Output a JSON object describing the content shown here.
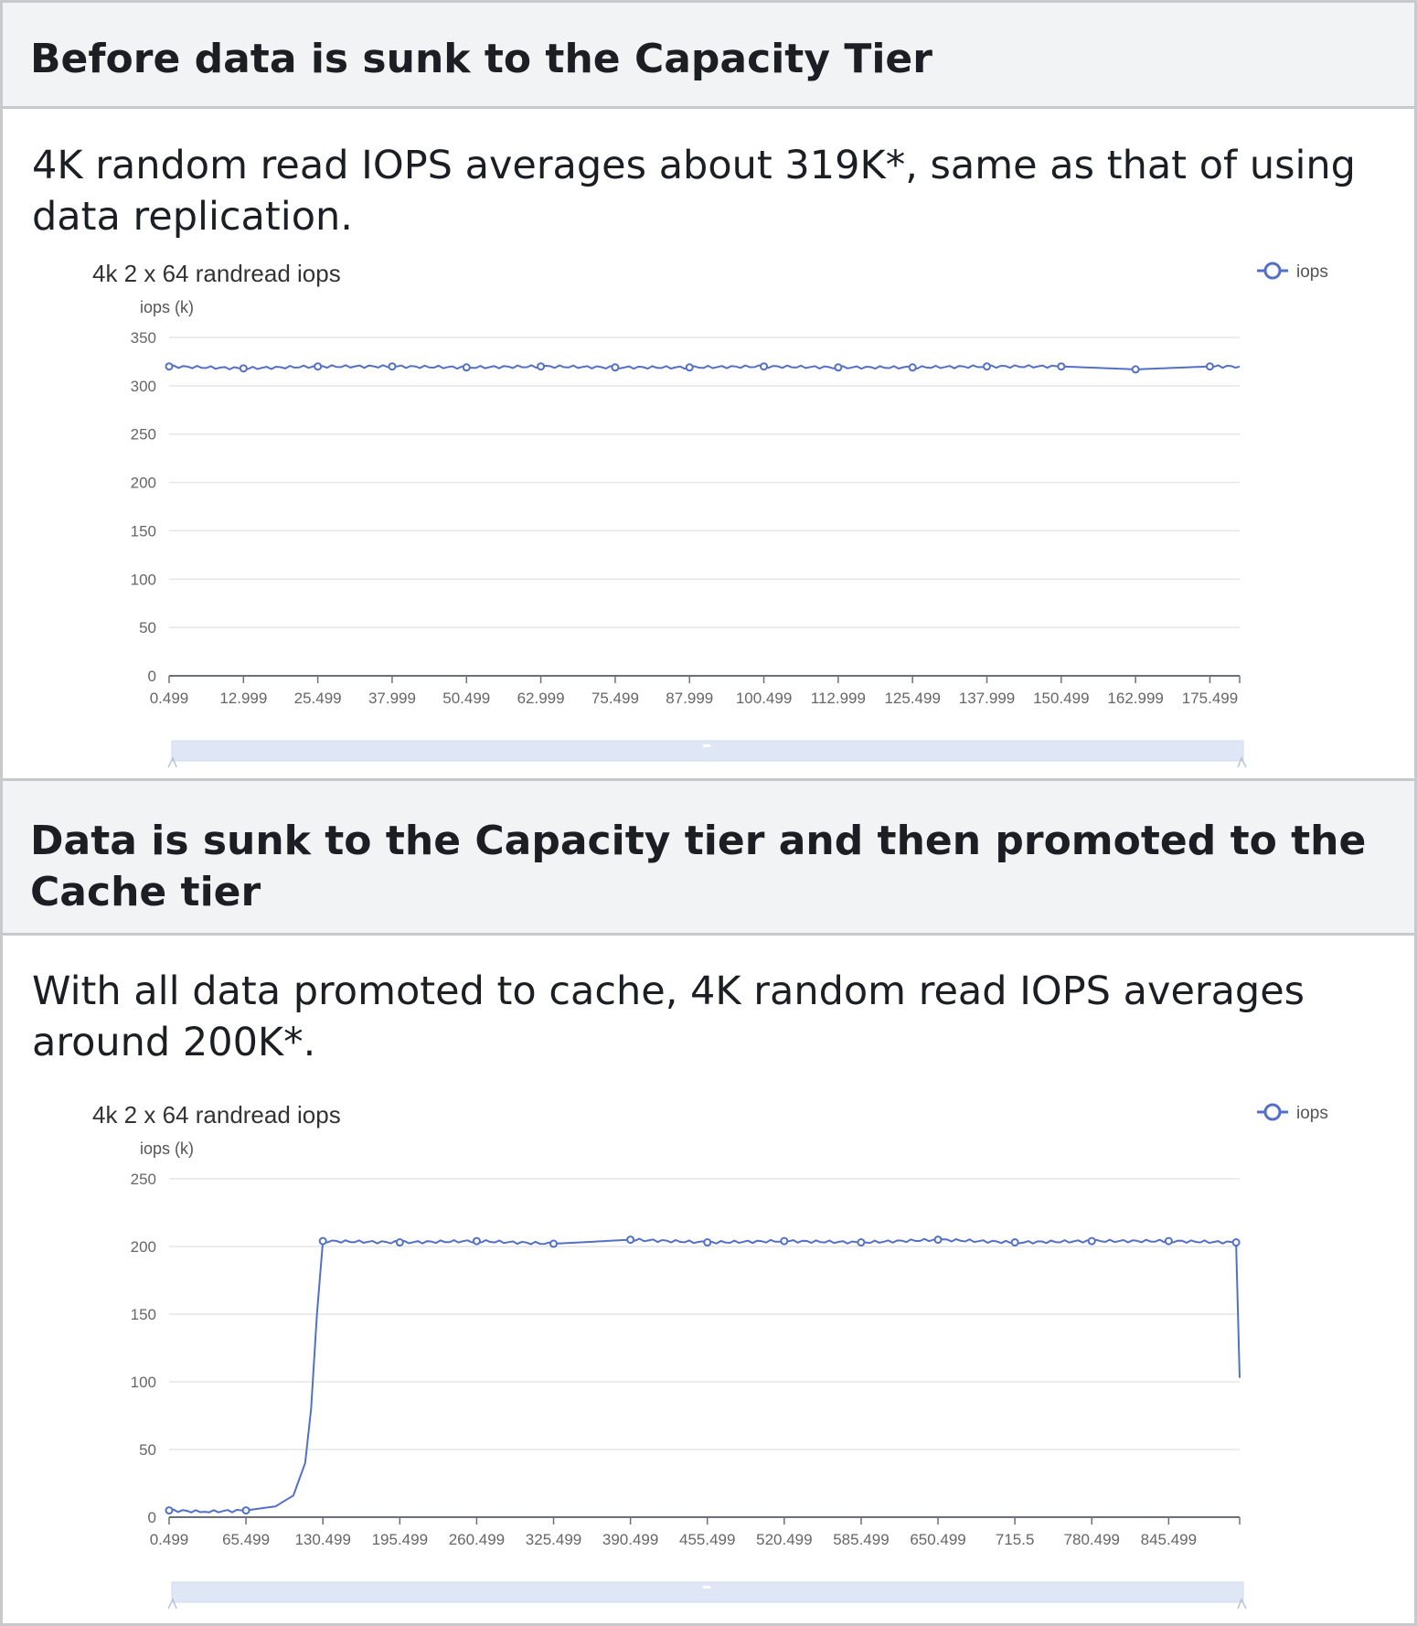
{
  "sections": [
    {
      "header": "Before data is sunk to the Capacity Tier",
      "text": "4K random read IOPS averages about 319K*, same as that of using data replication."
    },
    {
      "header": "Data is sunk to the Capacity tier and then promoted to the Cache tier",
      "text": "With all data promoted to cache, 4K random read IOPS averages around 200K*."
    }
  ],
  "colors": {
    "series": "#5470c6",
    "grid": "#e6e6e6",
    "axis": "#6e7079",
    "slider": "#dfe6f5"
  },
  "chart_data": [
    {
      "type": "line",
      "title": "4k 2 x 64 randread iops",
      "ylabel": "iops (k)",
      "ylim": [
        0,
        350
      ],
      "yticks": [
        0,
        50,
        100,
        150,
        200,
        250,
        300,
        350
      ],
      "xlim": [
        0.499,
        180.499
      ],
      "xticks": [
        "0.499",
        "12.999",
        "25.499",
        "37.999",
        "50.499",
        "62.999",
        "75.499",
        "87.999",
        "100.499",
        "112.999",
        "125.499",
        "137.999",
        "150.499",
        "162.999",
        "175.499"
      ],
      "legend": "top-right",
      "grid": true,
      "series": [
        {
          "name": "iops",
          "x": [
            0.499,
            12.999,
            25.499,
            37.999,
            50.499,
            62.999,
            75.499,
            87.999,
            100.499,
            112.999,
            125.499,
            137.999,
            150.499,
            162.999,
            175.499,
            180.499
          ],
          "values": [
            320,
            318,
            320,
            320,
            319,
            320,
            319,
            319,
            320,
            319,
            319,
            320,
            320,
            317,
            320,
            320
          ]
        }
      ]
    },
    {
      "type": "line",
      "title": "4k 2 x 64 randread iops",
      "ylabel": "iops (k)",
      "ylim": [
        0,
        250
      ],
      "yticks": [
        0,
        50,
        100,
        150,
        200,
        250
      ],
      "xlim": [
        0.499,
        905.5
      ],
      "xticks": [
        "0.499",
        "65.499",
        "130.499",
        "195.499",
        "260.499",
        "325.499",
        "390.499",
        "455.499",
        "520.499",
        "585.499",
        "650.499",
        "715.5",
        "780.499",
        "845.499"
      ],
      "legend": "top-right",
      "grid": true,
      "series": [
        {
          "name": "iops",
          "x": [
            0.499,
            30.499,
            65.499,
            90.499,
            105.499,
            115.499,
            120.499,
            125.499,
            130.499,
            195.499,
            260.499,
            325.499,
            390.499,
            455.499,
            520.499,
            585.499,
            650.499,
            715.5,
            780.499,
            845.499,
            902.5,
            905.5
          ],
          "values": [
            5,
            4,
            5,
            8,
            16,
            40,
            80,
            150,
            204,
            203,
            204,
            202,
            205,
            203,
            204,
            203,
            205,
            203,
            204,
            204,
            203,
            103
          ]
        }
      ]
    }
  ]
}
